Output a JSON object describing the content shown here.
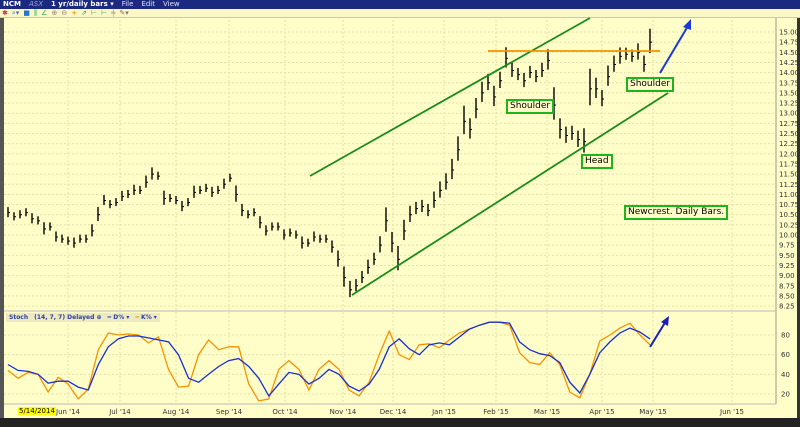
{
  "window": {
    "symbol": "NCM",
    "exchange": "ASX",
    "period": "1 yr/daily bars ▾",
    "menus": [
      "File",
      "Edit",
      "View"
    ]
  },
  "toolbar": {
    "icons": [
      "pointer-icon",
      "zoom-icon",
      "chart-type-icon",
      "bar-icon",
      "draw-icon",
      "zoom-in-icon",
      "zoom-out-icon",
      "crosshair-icon",
      "compare-icon",
      "fit-icon",
      "fit-all-icon",
      "move-icon",
      "settings-icon"
    ]
  },
  "stoch_header": {
    "name": "Stoch",
    "params": "(14, 7, 7) Delayed ⊕",
    "d_label": "D% ▾",
    "k_label": "K% ▾"
  },
  "colors": {
    "bars": "#000000",
    "trend": "#1a8c1a",
    "resistance": "#f59300",
    "arrow": "#1a3ad8",
    "k": "#f59300",
    "d": "#1a2fd0",
    "label_border": "#1db41d"
  },
  "annotations": {
    "shoulder_left": "Shoulder",
    "head": "Head",
    "shoulder_right": "Shoulder",
    "note": "Newcrest. Daily Bars."
  },
  "chart_data": [
    {
      "type": "ohlc-bar",
      "ticker": "NCM",
      "start_label": "5/14/2014",
      "yticks": [
        "15.00",
        "14.75",
        "14.50",
        "14.25",
        "14.00",
        "13.75",
        "13.50",
        "13.25",
        "13.00",
        "12.75",
        "12.50",
        "12.25",
        "12.00",
        "11.75",
        "11.50",
        "11.25",
        "11.00",
        "10.75",
        "10.50",
        "10.25",
        "10.00",
        "9.75",
        "9.50",
        "9.25",
        "9.00",
        "8.75",
        "8.50",
        "8.25"
      ],
      "ylim": [
        8.25,
        15.0
      ],
      "xticks": [
        "Jun '14",
        "Jul '14",
        "Aug '14",
        "Sep '14",
        "Oct '14",
        "Nov '14",
        "Dec '14",
        "Jan '15",
        "Feb '15",
        "Mar '15",
        "Apr '15",
        "May '15",
        "Jun '15"
      ],
      "close": [
        10.55,
        10.45,
        10.5,
        10.55,
        10.4,
        10.35,
        10.15,
        10.2,
        9.95,
        9.9,
        9.85,
        9.8,
        9.9,
        9.9,
        10.1,
        10.5,
        10.85,
        10.75,
        10.8,
        10.95,
        11.0,
        11.1,
        11.1,
        11.3,
        11.5,
        11.45,
        10.9,
        10.9,
        10.85,
        10.7,
        10.8,
        11.05,
        11.1,
        11.15,
        11.05,
        11.1,
        11.25,
        11.4,
        11.0,
        10.6,
        10.5,
        10.55,
        10.3,
        10.1,
        10.2,
        10.2,
        10.0,
        10.05,
        10.0,
        9.8,
        9.8,
        9.95,
        9.9,
        9.9,
        9.7,
        9.4,
        8.95,
        8.65,
        8.75,
        8.95,
        9.2,
        9.4,
        9.75,
        10.35,
        9.8,
        9.4,
        10.1,
        10.5,
        10.65,
        10.7,
        10.6,
        10.85,
        11.1,
        11.3,
        11.6,
        12.1,
        12.8,
        12.6,
        13.1,
        13.5,
        13.75,
        13.4,
        13.8,
        14.35,
        14.05,
        13.95,
        13.8,
        14.0,
        13.9,
        14.05,
        14.3,
        13.2,
        12.6,
        12.45,
        12.5,
        12.35,
        12.3,
        13.6,
        13.6,
        13.35,
        13.9,
        14.2,
        14.4,
        14.45,
        14.4,
        14.5,
        14.2,
        14.75
      ],
      "range": [
        0.25,
        0.2,
        0.2,
        0.2,
        0.25,
        0.2,
        0.3,
        0.2,
        0.25,
        0.2,
        0.2,
        0.25,
        0.2,
        0.2,
        0.3,
        0.35,
        0.25,
        0.2,
        0.2,
        0.25,
        0.2,
        0.25,
        0.2,
        0.3,
        0.3,
        0.2,
        0.35,
        0.2,
        0.2,
        0.25,
        0.2,
        0.3,
        0.2,
        0.2,
        0.25,
        0.2,
        0.25,
        0.2,
        0.4,
        0.3,
        0.2,
        0.2,
        0.3,
        0.25,
        0.2,
        0.2,
        0.25,
        0.2,
        0.2,
        0.3,
        0.2,
        0.25,
        0.2,
        0.2,
        0.3,
        0.4,
        0.5,
        0.4,
        0.3,
        0.3,
        0.35,
        0.3,
        0.4,
        0.6,
        0.5,
        0.6,
        0.5,
        0.4,
        0.3,
        0.3,
        0.3,
        0.4,
        0.4,
        0.4,
        0.5,
        0.6,
        0.7,
        0.5,
        0.5,
        0.5,
        0.4,
        0.5,
        0.4,
        0.5,
        0.35,
        0.3,
        0.35,
        0.3,
        0.3,
        0.35,
        0.5,
        0.8,
        0.5,
        0.4,
        0.35,
        0.4,
        0.6,
        0.9,
        0.5,
        0.4,
        0.5,
        0.4,
        0.4,
        0.3,
        0.3,
        0.4,
        0.4,
        0.6
      ]
    },
    {
      "type": "line",
      "yticks": [
        "80",
        "60",
        "40",
        "20"
      ],
      "ylim": [
        0,
        100
      ],
      "series": [
        {
          "name": "D%",
          "values": [
            50,
            44,
            43,
            40,
            31,
            33,
            33,
            27,
            24,
            50,
            68,
            76,
            79,
            79,
            77,
            75,
            73,
            60,
            36,
            32,
            40,
            48,
            54,
            56,
            48,
            36,
            18,
            30,
            42,
            40,
            30,
            36,
            45,
            40,
            28,
            23,
            30,
            45,
            68,
            76,
            66,
            60,
            70,
            72,
            70,
            78,
            86,
            90,
            93,
            93,
            92,
            73,
            65,
            61,
            59,
            52,
            32,
            21,
            40,
            62,
            73,
            82,
            87,
            83,
            76
          ]
        },
        {
          "name": "K%",
          "values": [
            44,
            36,
            42,
            40,
            22,
            37,
            30,
            15,
            25,
            65,
            82,
            80,
            81,
            80,
            72,
            78,
            45,
            27,
            28,
            60,
            75,
            65,
            68,
            68,
            30,
            13,
            15,
            45,
            54,
            45,
            24,
            45,
            54,
            45,
            24,
            18,
            32,
            60,
            84,
            60,
            55,
            70,
            71,
            67,
            75,
            82,
            86,
            90,
            93,
            93,
            90,
            62,
            52,
            50,
            62,
            50,
            22,
            16,
            40,
            74,
            80,
            87,
            92,
            80,
            70
          ]
        }
      ]
    }
  ]
}
